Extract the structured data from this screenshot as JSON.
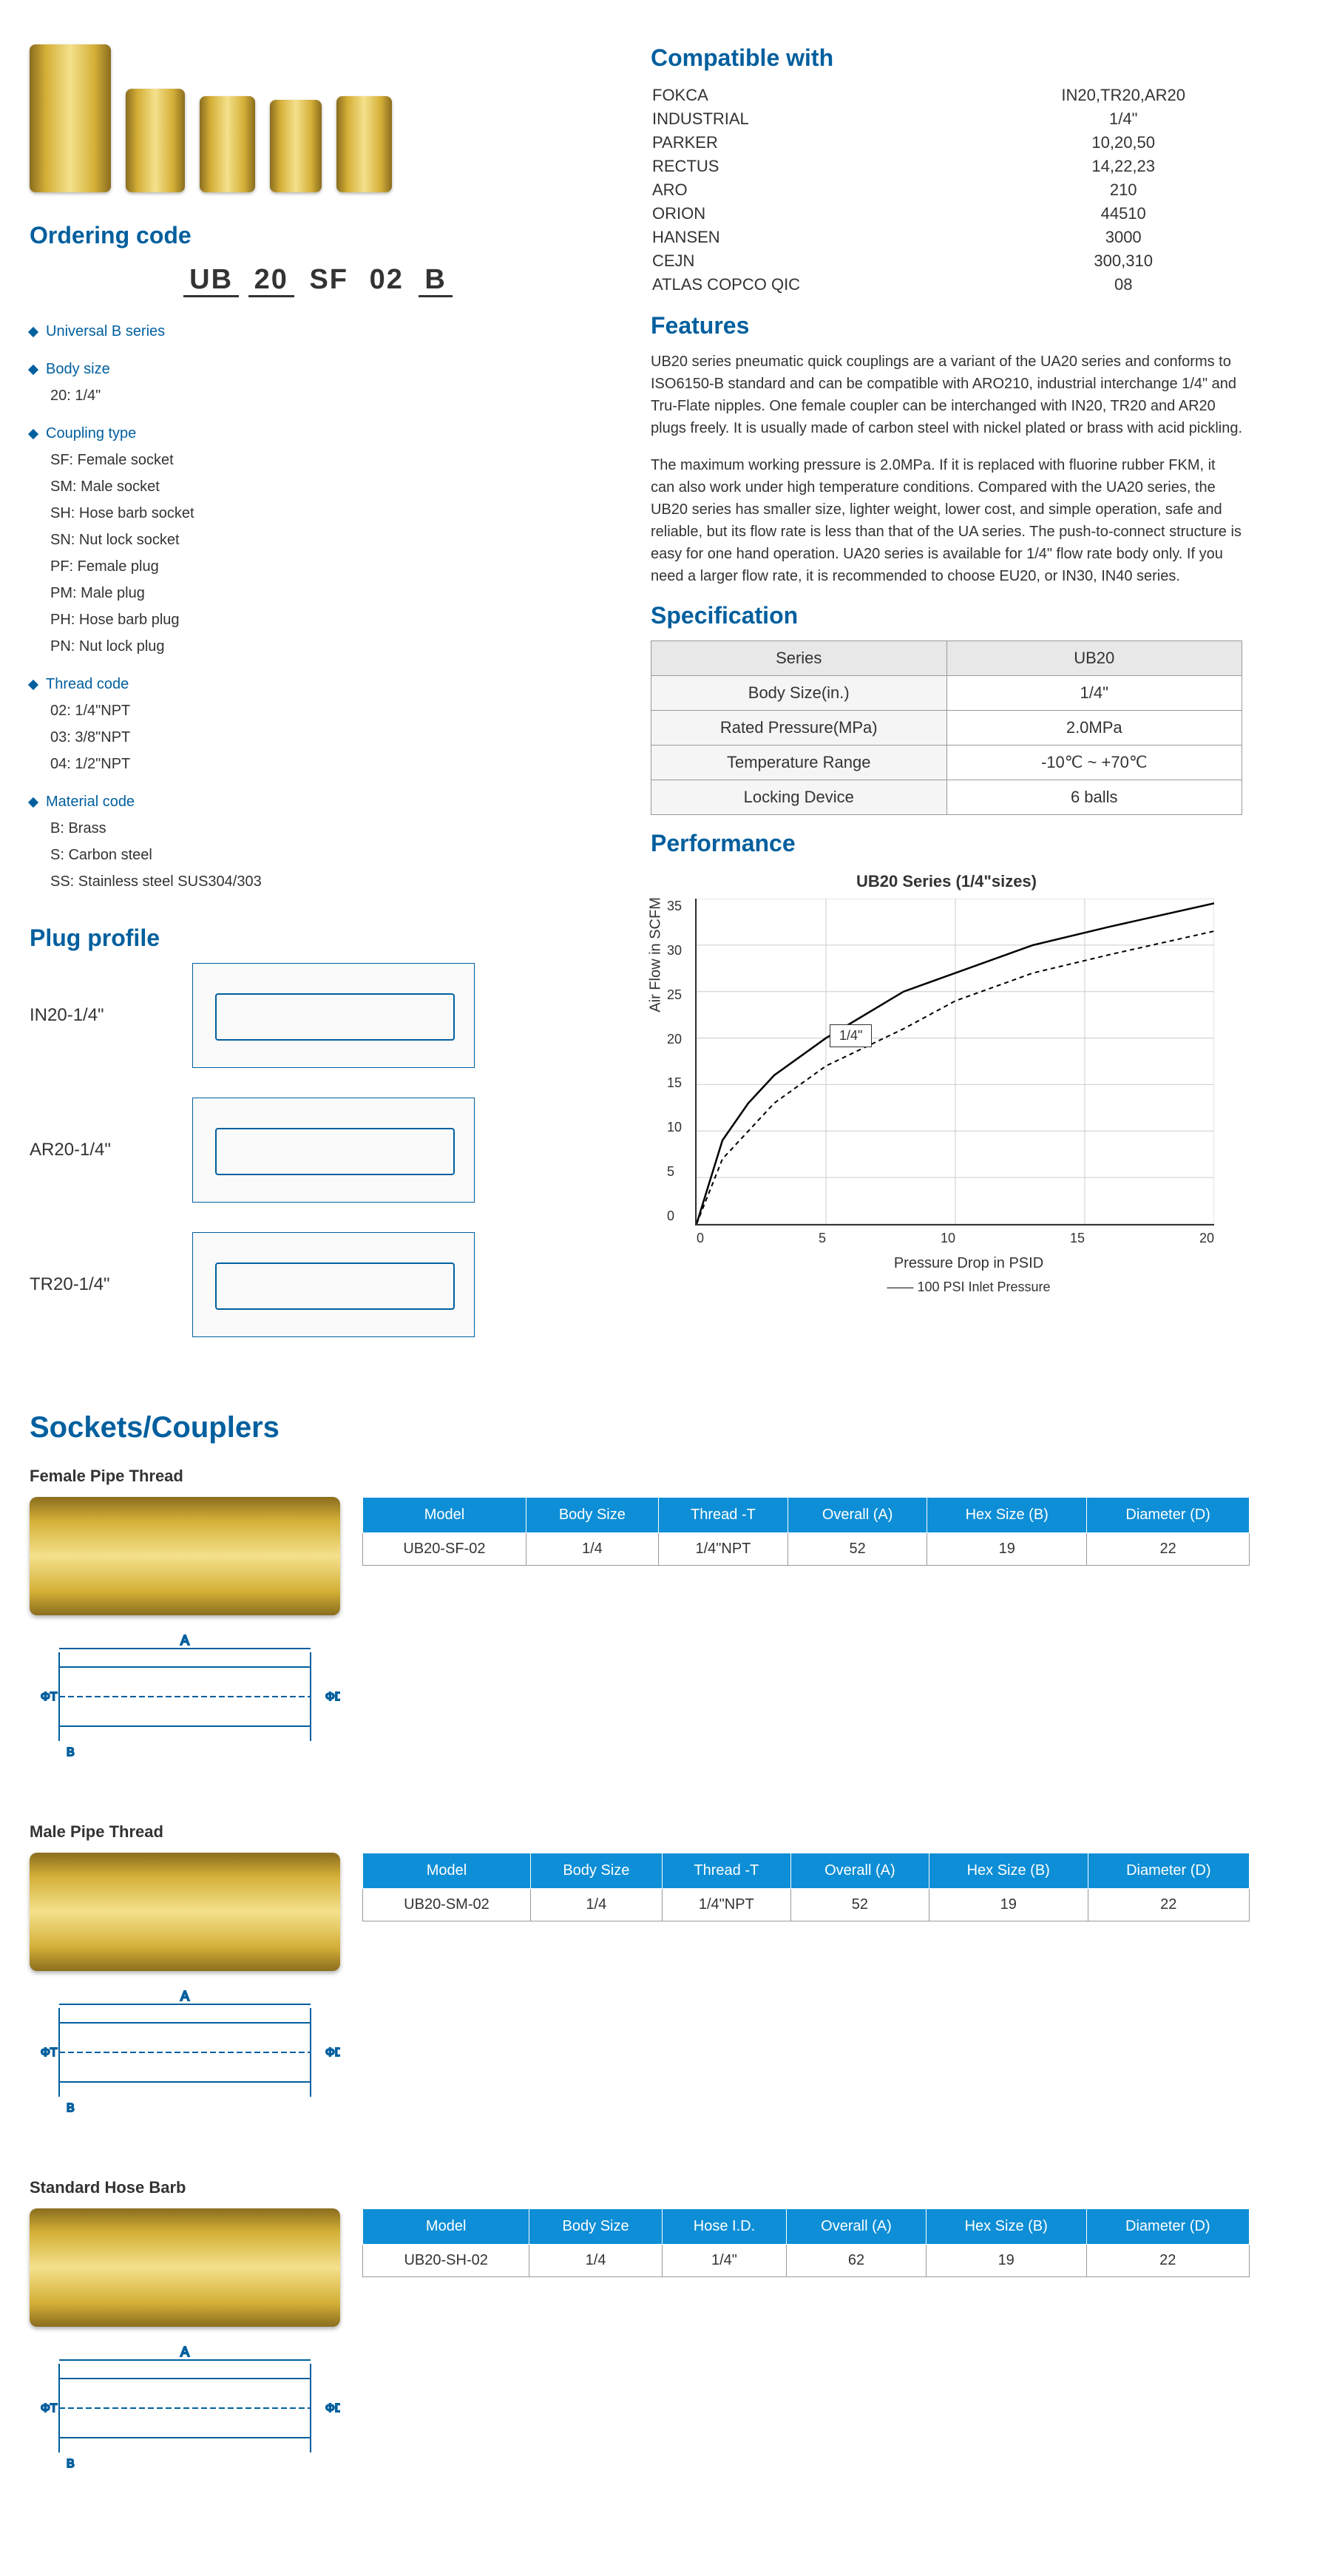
{
  "compat_title": "Compatible with",
  "compat": [
    [
      "FOKCA",
      "IN20,TR20,AR20"
    ],
    [
      "INDUSTRIAL",
      "1/4\""
    ],
    [
      "PARKER",
      "10,20,50"
    ],
    [
      "RECTUS",
      "14,22,23"
    ],
    [
      "ARO",
      "210"
    ],
    [
      "ORION",
      "44510"
    ],
    [
      "HANSEN",
      "3000"
    ],
    [
      "CEJN",
      "300,310"
    ],
    [
      "ATLAS COPCO QIC",
      "08"
    ]
  ],
  "ordering_title": "Ordering code",
  "code_parts": [
    "UB",
    "20",
    "-",
    "SF",
    "-",
    "02",
    "B"
  ],
  "code_groups": [
    {
      "header": "Universal B series",
      "items": []
    },
    {
      "header": "Body size",
      "items": [
        "20: 1/4\""
      ]
    },
    {
      "header": "Coupling type",
      "items": [
        "SF: Female socket",
        "SM: Male socket",
        "SH: Hose barb socket",
        "SN: Nut lock socket",
        "PF: Female plug",
        "PM: Male plug",
        "PH: Hose barb plug",
        "PN: Nut lock plug"
      ]
    },
    {
      "header": "Thread code",
      "items": [
        "02: 1/4\"NPT",
        "03: 3/8\"NPT",
        "04: 1/2\"NPT"
      ]
    },
    {
      "header": "Material code",
      "items": [
        "B: Brass",
        "S: Carbon steel",
        "SS: Stainless steel SUS304/303"
      ]
    }
  ],
  "features_title": "Features",
  "features_p1": "UB20 series pneumatic quick couplings are a variant of the UA20 series and conforms to ISO6150-B standard and can be compatible with ARO210, industrial interchange 1/4\" and Tru-Flate nipples. One female coupler can be interchanged with IN20, TR20 and AR20 plugs freely. It is usually made of carbon steel with nickel plated or brass with acid pickling.",
  "features_p2": "The maximum working pressure is 2.0MPa. If it is replaced with fluorine rubber FKM, it can also work under high temperature conditions. Compared with the UA20 series, the UB20 series has smaller size, lighter weight, lower cost, and simple operation, safe and reliable, but its flow rate is less than that of the UA series. The push-to-connect structure is easy for one hand operation. UA20 series is available for 1/4\" flow rate body only. If you need a larger flow rate, it is recommended to choose EU20, or IN30, IN40 series.",
  "spec_title": "Specification",
  "spec": {
    "header": [
      "Series",
      "UB20"
    ],
    "rows": [
      [
        "Body Size(in.)",
        "1/4\""
      ],
      [
        "Rated Pressure(MPa)",
        "2.0MPa"
      ],
      [
        "Temperature Range",
        "-10℃ ~ +70℃"
      ],
      [
        "Locking Device",
        "6 balls"
      ]
    ]
  },
  "plug_title": "Plug profile",
  "plug_labels": [
    "IN20-1/4\"",
    "AR20-1/4\"",
    "TR20-1/4\""
  ],
  "perf_title": "Performance",
  "chart": {
    "title": "UB20 Series (1/4\"sizes)",
    "ylabel": "Air Flow in SCFM",
    "xlabel": "Pressure Drop in PSID",
    "legend": "—— 100 PSI Inlet Pressure",
    "marker": "1/4\"",
    "ylim": [
      0,
      35
    ],
    "ystep": 5,
    "xlim": [
      0,
      20
    ],
    "xstep": 5,
    "yticks": [
      "0",
      "5",
      "10",
      "15",
      "20",
      "25",
      "30",
      "35"
    ],
    "xticks": [
      "0",
      "5",
      "10",
      "15",
      "20"
    ],
    "series_solid": [
      [
        0,
        0
      ],
      [
        1,
        9
      ],
      [
        2,
        13
      ],
      [
        3,
        16
      ],
      [
        5,
        20
      ],
      [
        8,
        25
      ],
      [
        10,
        27
      ],
      [
        13,
        30
      ],
      [
        16,
        32
      ],
      [
        20,
        34.5
      ]
    ],
    "series_dash": [
      [
        0,
        0
      ],
      [
        1,
        7
      ],
      [
        2,
        10
      ],
      [
        3,
        13
      ],
      [
        5,
        17
      ],
      [
        8,
        21
      ],
      [
        10,
        24
      ],
      [
        13,
        27
      ],
      [
        16,
        29
      ],
      [
        20,
        31.5
      ]
    ],
    "grid_color": "#cccccc",
    "line_color": "#000000"
  },
  "sockets_title": "Sockets/Couplers",
  "socket_blocks": [
    {
      "title": "Female Pipe Thread",
      "columns": [
        "Model",
        "Body Size",
        "Thread -T",
        "Overall (A)",
        "Hex Size (B)",
        "Diameter (D)"
      ],
      "row": [
        "UB20-SF-02",
        "1/4",
        "1/4\"NPT",
        "52",
        "19",
        "22"
      ]
    },
    {
      "title": "Male Pipe Thread",
      "columns": [
        "Model",
        "Body Size",
        "Thread -T",
        "Overall (A)",
        "Hex Size (B)",
        "Diameter (D)"
      ],
      "row": [
        "UB20-SM-02",
        "1/4",
        "1/4\"NPT",
        "52",
        "19",
        "22"
      ]
    },
    {
      "title": "Standard Hose Barb",
      "columns": [
        "Model",
        "Body Size",
        "Hose I.D.",
        "Overall (A)",
        "Hex Size (B)",
        "Diameter (D)"
      ],
      "row": [
        "UB20-SH-02",
        "1/4",
        "1/4\"",
        "62",
        "19",
        "22"
      ]
    }
  ]
}
